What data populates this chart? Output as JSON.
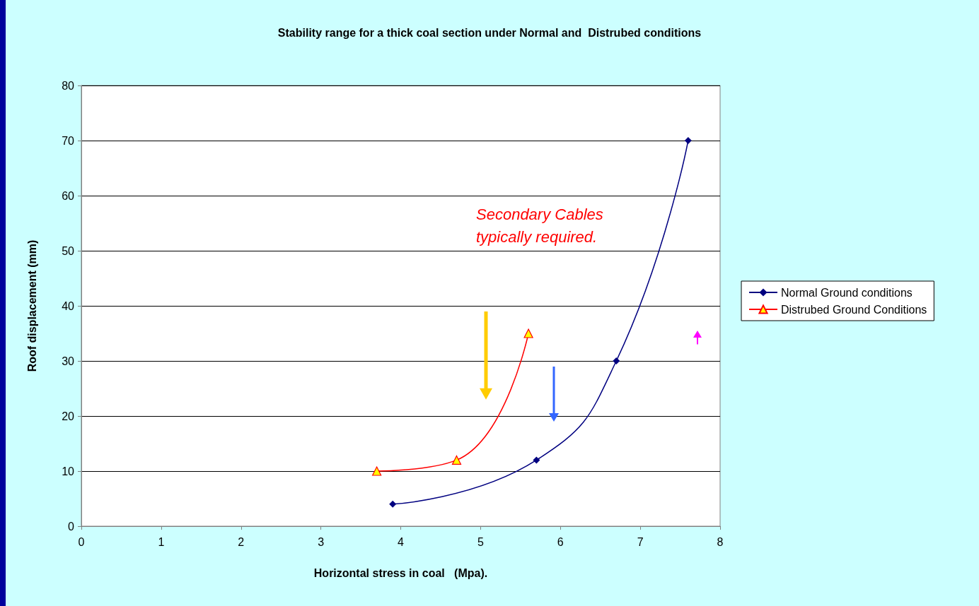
{
  "chart_data": {
    "type": "line",
    "title": "Stability range for a thick coal section under Normal and  Distrubed conditions",
    "xlabel": "Horizontal stress in coal   (Mpa).",
    "ylabel": "Roof displacement (mm)",
    "annotations": [
      "Secondary Cables typically required."
    ],
    "series": [
      {
        "name": "Normal Ground conditions",
        "color": "#000080",
        "marker": "diamond",
        "x": [
          3.9,
          5.7,
          6.7,
          7.6
        ],
        "values": [
          4,
          12,
          30,
          70
        ]
      },
      {
        "name": "Distrubed Ground Conditions",
        "color": "#ff0000",
        "marker": "triangle",
        "x": [
          3.7,
          4.7,
          5.6
        ],
        "values": [
          10,
          12,
          35
        ]
      }
    ],
    "xlim": [
      0,
      8
    ],
    "xticks": [
      0,
      1,
      2,
      3,
      4,
      5,
      6,
      7,
      8
    ],
    "ylim": [
      0,
      80
    ],
    "yticks": [
      0,
      10,
      20,
      30,
      40,
      50,
      60,
      70,
      80
    ],
    "grid": "y",
    "legend": "right",
    "line_style": "solid"
  }
}
